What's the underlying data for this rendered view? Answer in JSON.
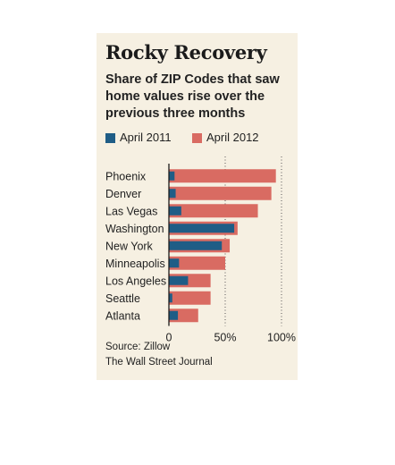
{
  "header": {
    "title": "Rocky Recovery",
    "subtitle": "Share of ZIP Codes that saw home values rise over the previous three months"
  },
  "legend": [
    {
      "label": "April 2011",
      "color": "#1f5d86"
    },
    {
      "label": "April 2012",
      "color": "#d96b62"
    }
  ],
  "footer": {
    "source": "Source: Zillow",
    "credit": "The Wall Street Journal"
  },
  "chart_data": {
    "type": "bar",
    "orientation": "horizontal",
    "title": "Rocky Recovery",
    "subtitle": "Share of ZIP Codes that saw home values rise over the previous three months",
    "categories": [
      "Phoenix",
      "Denver",
      "Las Vegas",
      "Washington",
      "New York",
      "Minneapolis",
      "Los Angeles",
      "Seattle",
      "Atlanta"
    ],
    "series": [
      {
        "name": "April 2011",
        "color": "#1f5d86",
        "values": [
          5,
          6,
          11,
          58,
          47,
          9,
          17,
          3,
          8
        ]
      },
      {
        "name": "April 2012",
        "color": "#d96b62",
        "values": [
          95,
          91,
          79,
          61,
          54,
          50,
          37,
          37,
          26
        ]
      }
    ],
    "overlay": true,
    "xlim": [
      0,
      100
    ],
    "xticks": [
      0,
      50,
      100
    ],
    "xtick_labels": [
      "0",
      "50%",
      "100%"
    ],
    "gridlines": "dotted at 50% and 100%",
    "legend_position": "top",
    "background": "#f6f0e2"
  }
}
